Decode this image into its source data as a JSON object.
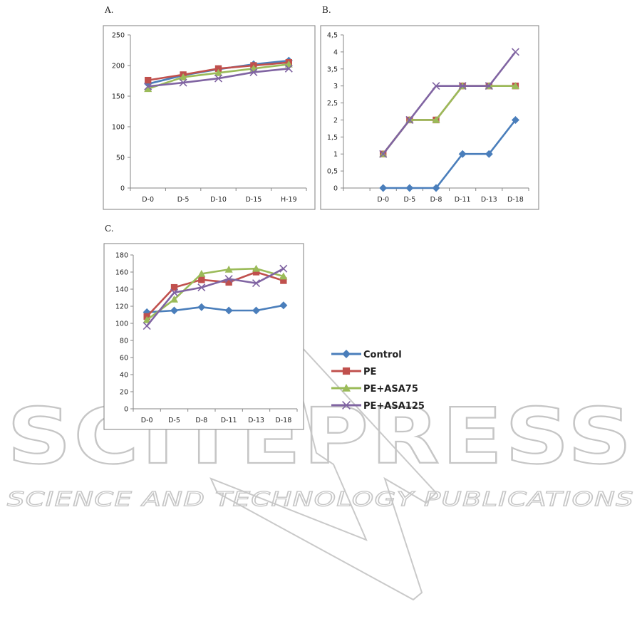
{
  "watermark": {
    "main": "SCITEPRESS",
    "sub": "SCIENCE AND TECHNOLOGY PUBLICATIONS"
  },
  "colors": {
    "Control": "#4a7ebb",
    "PE": "#c0504d",
    "PE+ASA75": "#9bbb59",
    "PE+ASA125": "#8064a2"
  },
  "chart_data": [
    {
      "panel": "A.",
      "type": "line",
      "categories": [
        "D-0",
        "D-5",
        "D-10",
        "D-15",
        "H-19"
      ],
      "ylim": [
        0,
        250
      ],
      "yticks": [
        "0",
        "50",
        "100",
        "150",
        "200",
        "250"
      ],
      "grid": false,
      "series": [
        {
          "name": "Control",
          "marker": "diamond",
          "values": [
            170,
            184,
            194,
            202,
            208
          ]
        },
        {
          "name": "PE",
          "marker": "square",
          "values": [
            176,
            185,
            195,
            200,
            205
          ]
        },
        {
          "name": "PE+ASA75",
          "marker": "triangle",
          "values": [
            162,
            181,
            188,
            195,
            202
          ]
        },
        {
          "name": "PE+ASA125",
          "marker": "x",
          "values": [
            166,
            172,
            179,
            189,
            195
          ]
        }
      ]
    },
    {
      "panel": "B.",
      "type": "line",
      "categories": [
        "",
        "D-0",
        "D-5",
        "D-8",
        "D-11",
        "D-13",
        "D-18"
      ],
      "ylim": [
        0,
        4.5
      ],
      "yticks": [
        "0",
        "0,5",
        "1",
        "1,5",
        "2",
        "2,5",
        "3",
        "3,5",
        "4",
        "4,5"
      ],
      "grid": false,
      "series": [
        {
          "name": "Control",
          "marker": "diamond",
          "values": [
            null,
            0,
            0,
            0,
            1,
            1,
            2
          ]
        },
        {
          "name": "PE",
          "marker": "square",
          "values": [
            null,
            1,
            2,
            2,
            3,
            3,
            3
          ]
        },
        {
          "name": "PE+ASA75",
          "marker": "triangle",
          "values": [
            null,
            1,
            2,
            2,
            3,
            3,
            3
          ]
        },
        {
          "name": "PE+ASA125",
          "marker": "x",
          "values": [
            null,
            1,
            2,
            3,
            3,
            3,
            4
          ]
        }
      ]
    },
    {
      "panel": "C.",
      "type": "line",
      "categories": [
        "D-0",
        "D-5",
        "D-8",
        "D-11",
        "D-13",
        "D-18"
      ],
      "ylim": [
        0,
        180
      ],
      "yticks": [
        "0",
        "20",
        "40",
        "60",
        "80",
        "100",
        "120",
        "140",
        "160",
        "180"
      ],
      "grid": false,
      "legend": "right",
      "series": [
        {
          "name": "Control",
          "marker": "diamond",
          "values": [
            113,
            115,
            119,
            115,
            115,
            121
          ]
        },
        {
          "name": "PE",
          "marker": "square",
          "values": [
            108,
            142,
            151,
            148,
            160,
            150
          ]
        },
        {
          "name": "PE+ASA75",
          "marker": "triangle",
          "values": [
            104,
            128,
            158,
            163,
            164,
            155
          ]
        },
        {
          "name": "PE+ASA125",
          "marker": "x",
          "values": [
            97,
            136,
            142,
            152,
            147,
            164
          ]
        }
      ]
    }
  ]
}
